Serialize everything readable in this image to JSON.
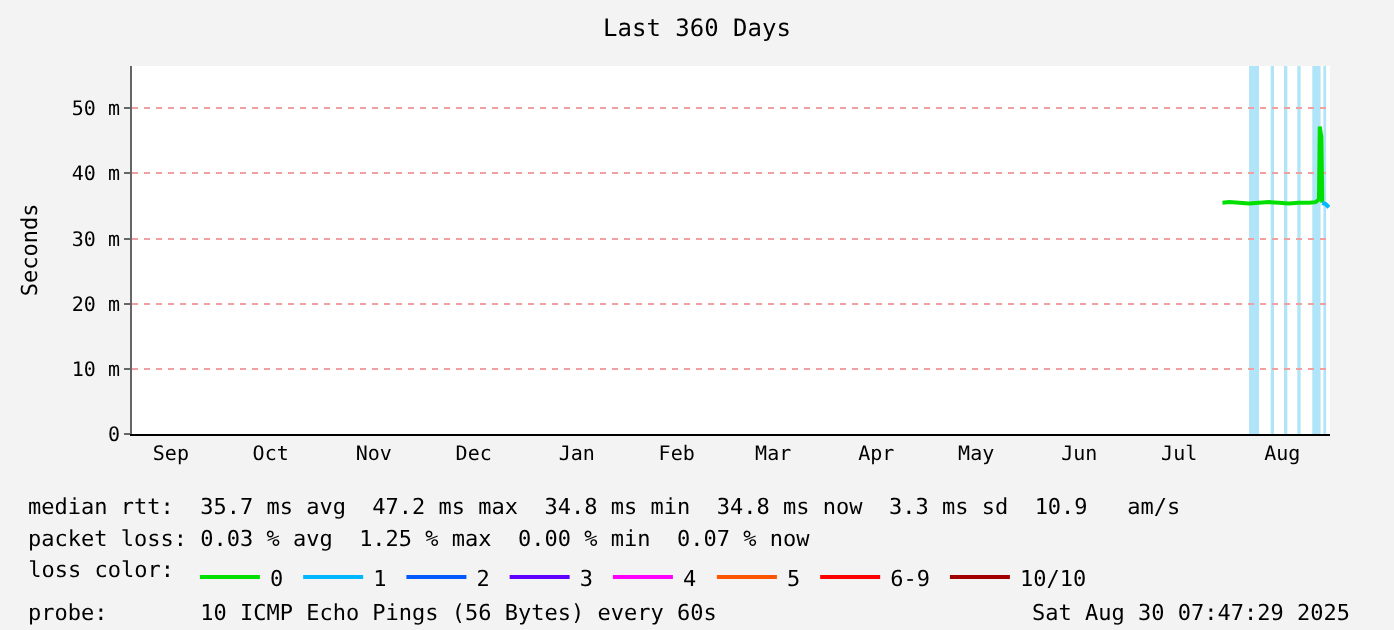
{
  "chart_data": {
    "type": "line",
    "title": "Last 360 Days",
    "ylabel": "Seconds",
    "legend_title": "loss color:",
    "x": [
      "2025-07-29",
      "2025-07-31",
      "2025-08-03",
      "2025-08-06",
      "2025-08-09",
      "2025-08-12",
      "2025-08-15",
      "2025-08-18",
      "2025-08-21",
      "2025-08-24",
      "2025-08-26",
      "2025-08-27",
      "2025-08-27T06:00",
      "2025-08-27T18:00",
      "2025-08-28",
      "2025-08-29",
      "2025-08-30"
    ],
    "series": [
      {
        "name": "0",
        "color": "#00e000",
        "values": [
          35.5,
          35.6,
          35.5,
          35.4,
          35.5,
          35.6,
          35.5,
          35.4,
          35.5,
          35.5,
          35.6,
          36,
          47.2,
          45.5,
          35.5,
          null,
          null
        ]
      },
      {
        "name": "1",
        "color": "#00b8ff",
        "values": [
          null,
          null,
          null,
          null,
          null,
          null,
          null,
          null,
          null,
          null,
          null,
          null,
          null,
          null,
          35.5,
          35.3,
          34.8
        ]
      },
      {
        "name": "2",
        "color": "#0059ff",
        "values": [
          null,
          null,
          null,
          null,
          null,
          null,
          null,
          null,
          null,
          null,
          null,
          null,
          null,
          null,
          null,
          null,
          null
        ]
      },
      {
        "name": "3",
        "color": "#5e00ff",
        "values": [
          null,
          null,
          null,
          null,
          null,
          null,
          null,
          null,
          null,
          null,
          null,
          null,
          null,
          null,
          null,
          null,
          null
        ]
      },
      {
        "name": "4",
        "color": "#ff00ff",
        "values": [
          null,
          null,
          null,
          null,
          null,
          null,
          null,
          null,
          null,
          null,
          null,
          null,
          null,
          null,
          null,
          null,
          null
        ]
      },
      {
        "name": "5",
        "color": "#ff5500",
        "values": [
          null,
          null,
          null,
          null,
          null,
          null,
          null,
          null,
          null,
          null,
          null,
          null,
          null,
          null,
          null,
          null,
          null
        ]
      },
      {
        "name": "6-9",
        "color": "#ff0000",
        "values": [
          null,
          null,
          null,
          null,
          null,
          null,
          null,
          null,
          null,
          null,
          null,
          null,
          null,
          null,
          null,
          null,
          null
        ]
      },
      {
        "name": "10/10",
        "color": "#a10000",
        "values": [
          null,
          null,
          null,
          null,
          null,
          null,
          null,
          null,
          null,
          null,
          null,
          null,
          null,
          null,
          null,
          null,
          null
        ]
      }
    ],
    "xlim": [
      "2024-09-04T07:47",
      "2025-08-30T07:47"
    ],
    "xticks": [
      {
        "value": "2024-09-16",
        "label": "Sep"
      },
      {
        "value": "2024-10-16",
        "label": "Oct"
      },
      {
        "value": "2024-11-16",
        "label": "Nov"
      },
      {
        "value": "2024-12-16",
        "label": "Dec"
      },
      {
        "value": "2025-01-16",
        "label": "Jan"
      },
      {
        "value": "2025-02-15",
        "label": "Feb"
      },
      {
        "value": "2025-03-16",
        "label": "Mar"
      },
      {
        "value": "2025-04-16",
        "label": "Apr"
      },
      {
        "value": "2025-05-16",
        "label": "May"
      },
      {
        "value": "2025-06-16",
        "label": "Jun"
      },
      {
        "value": "2025-07-16",
        "label": "Jul"
      },
      {
        "value": "2025-08-16",
        "label": "Aug"
      }
    ],
    "ylim": [
      0,
      56.5
    ],
    "yticks": [
      0,
      {
        "value": 10,
        "label": "10 m"
      },
      {
        "value": 20,
        "label": "20 m"
      },
      {
        "value": 30,
        "label": "30 m"
      },
      {
        "value": 40,
        "label": "40 m"
      },
      {
        "value": 50,
        "label": "50 m"
      }
    ],
    "bands": [
      {
        "axis": "x",
        "from": "2025-08-06",
        "to": "2025-08-09",
        "color": "#b0e4f8"
      },
      {
        "axis": "x",
        "from": "2025-08-12T12:00",
        "to": "2025-08-13T12:00",
        "color": "#b0e4f8"
      },
      {
        "axis": "x",
        "from": "2025-08-16T12:00",
        "to": "2025-08-17T12:00",
        "color": "#b0e4f8"
      },
      {
        "axis": "x",
        "from": "2025-08-20T12:00",
        "to": "2025-08-21T12:00",
        "color": "#b0e4f8"
      },
      {
        "axis": "x",
        "from": "2025-08-25",
        "to": "2025-08-27T12:00",
        "color": "#b0e4f8"
      },
      {
        "axis": "x",
        "from": "2025-08-28T08:00",
        "to": "2025-08-29T04:00",
        "color": "#b0e4f8"
      }
    ],
    "grid": "y",
    "legend": "bottom",
    "marker": "none",
    "line_style": "solid",
    "annotations": [
      "median rtt:  35.7 ms avg  47.2 ms max  34.8 ms min  34.8 ms now  3.3 ms sd  10.9   am/s",
      "packet loss: 0.03 % avg  1.25 % max  0.00 % min  0.07 % now",
      "probe:       10 ICMP Echo Pings (56 Bytes) every 60s",
      "Sat Aug 30 07:47:29 2025"
    ]
  }
}
